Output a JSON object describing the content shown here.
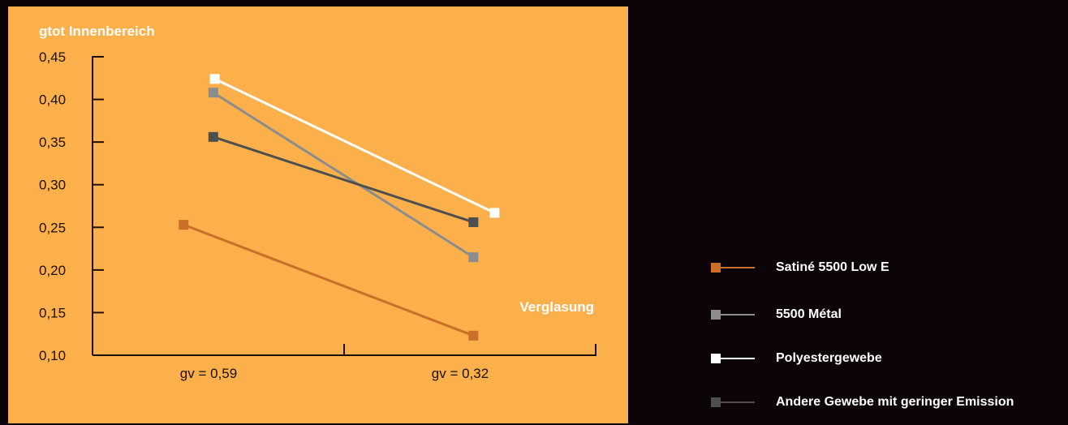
{
  "chart_data": {
    "type": "line",
    "ylabel": "gtot Innenbereich",
    "xlabel": "Verglasung",
    "categories": [
      "gv = 0,59",
      "gv = 0,32"
    ],
    "yticks": [
      "0,10",
      "0,15",
      "0,20",
      "0,25",
      "0,30",
      "0,35",
      "0,40",
      "0,45"
    ],
    "ylim": [
      0.1,
      0.45
    ],
    "grid": false,
    "legend_position": "right",
    "series": [
      {
        "name": "Satiné 5500 Low E",
        "color": "#c96f28",
        "values": [
          0.253,
          0.123
        ]
      },
      {
        "name": "5500 Métal",
        "color": "#8c8c8c",
        "values": [
          0.408,
          0.215
        ]
      },
      {
        "name": "Polyestergewebe",
        "color": "#ffffff",
        "values": [
          0.424,
          0.267
        ]
      },
      {
        "name": "Andere Gewebe mit geringer Emission",
        "color": "#4e4e4e",
        "values": [
          0.356,
          0.256
        ]
      }
    ],
    "series_marker_x_offset": [
      [
        -0.069,
        0.007
      ],
      [
        -0.01,
        0.007
      ],
      [
        -0.007,
        0.049
      ],
      [
        -0.01,
        0.007
      ]
    ]
  },
  "colors": {
    "background": "#0d0409",
    "panel": "#fbb04c"
  }
}
